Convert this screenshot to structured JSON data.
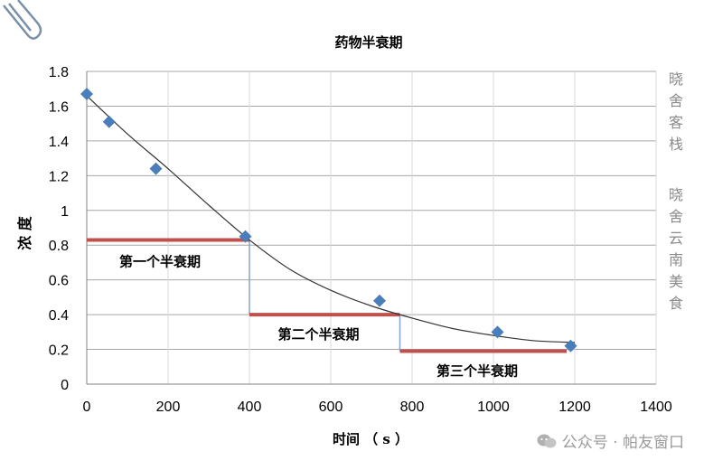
{
  "chart_data": {
    "type": "scatter",
    "title": "药物半衰期",
    "xlabel": "时间 （ s ）",
    "ylabel": "浓 度",
    "xlim": [
      0,
      1400
    ],
    "ylim": [
      0,
      1.8
    ],
    "xticks": [
      "0",
      "200",
      "400",
      "600",
      "800",
      "1000",
      "1200",
      "1400"
    ],
    "yticks": [
      "0",
      "0.2",
      "0.4",
      "0.6",
      "0.8",
      "1",
      "1.2",
      "1.4",
      "1.6",
      "1.8"
    ],
    "x_tick_values": [
      0,
      200,
      400,
      600,
      800,
      1000,
      1200,
      1400
    ],
    "y_tick_values": [
      0,
      0.2,
      0.4,
      0.6,
      0.8,
      1,
      1.2,
      1.4,
      1.6,
      1.8
    ],
    "grid": true,
    "series": [
      {
        "name": "浓度",
        "marker": "diamond",
        "color": "#4a7ebb",
        "x": [
          0,
          55,
          170,
          390,
          720,
          1010,
          1190
        ],
        "y": [
          1.67,
          1.51,
          1.24,
          0.85,
          0.48,
          0.3,
          0.22
        ]
      }
    ],
    "trendline": {
      "type": "polynomial",
      "color": "#333333",
      "x": [
        0,
        100,
        200,
        300,
        400,
        500,
        600,
        700,
        800,
        900,
        1000,
        1100,
        1200
      ],
      "y": [
        1.66,
        1.44,
        1.24,
        1.03,
        0.83,
        0.66,
        0.54,
        0.45,
        0.38,
        0.32,
        0.28,
        0.25,
        0.24
      ]
    },
    "half_life_segments": [
      {
        "label": "第一个半衰期",
        "x_start": 0,
        "x_end": 400,
        "y": 0.83,
        "label_x": 180,
        "label_y": 0.68
      },
      {
        "label": "第二个半衰期",
        "x_start": 400,
        "x_end": 770,
        "y": 0.4,
        "label_x": 570,
        "label_y": 0.26
      },
      {
        "label": "第三个半衰期",
        "x_start": 770,
        "x_end": 1180,
        "y": 0.19,
        "label_x": 960,
        "label_y": 0.05
      }
    ],
    "drop_lines": [
      {
        "x": 400,
        "y_top": 0.83,
        "y_bottom": 0.4
      },
      {
        "x": 770,
        "y_top": 0.4,
        "y_bottom": 0.19
      }
    ],
    "segment_color": "#c0504d",
    "drop_color": "#7fa6d4"
  },
  "watermark": {
    "side_text_1": "晓舍客栈",
    "side_text_2": "晓舍云南美食",
    "bottom_text": "公众号 · 帕友窗口"
  }
}
